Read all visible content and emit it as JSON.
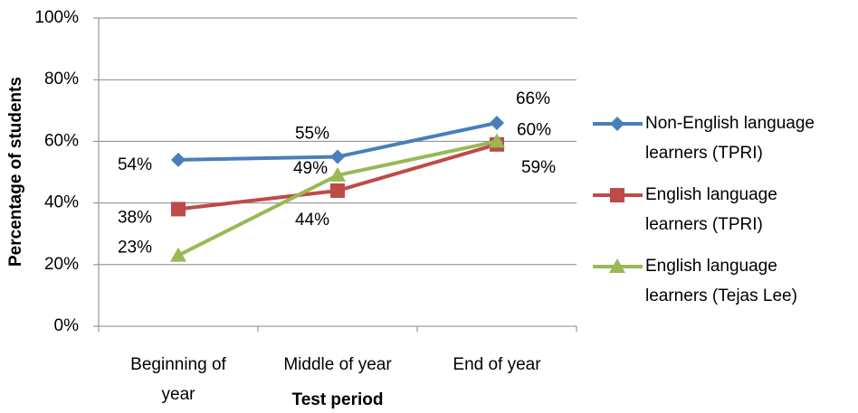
{
  "chart_data": {
    "type": "line",
    "x_label": "Test period",
    "y_label": "Percentage of students",
    "categories": [
      "Beginning of year",
      "Middle of year",
      "End of year"
    ],
    "series": [
      {
        "name": "Non-English language learners (TPRI)",
        "color": "#4a7ebb",
        "marker": "diamond",
        "values": [
          54,
          55,
          66
        ],
        "value_labels": [
          "54%",
          "55%",
          "66%"
        ]
      },
      {
        "name": "English language learners (TPRI)",
        "color": "#be4b48",
        "marker": "square",
        "values": [
          38,
          44,
          59
        ],
        "value_labels": [
          "38%",
          "44%",
          "59%"
        ]
      },
      {
        "name": "English language learners (Tejas Lee)",
        "color": "#98b954",
        "marker": "triangle",
        "values": [
          23,
          49,
          60
        ],
        "value_labels": [
          "23%",
          "49%",
          "60%"
        ]
      }
    ],
    "ylim": [
      0,
      100
    ],
    "yticks": [
      {
        "value": 0,
        "label": "0%"
      },
      {
        "value": 20,
        "label": "20%"
      },
      {
        "value": 40,
        "label": "40%"
      },
      {
        "value": 60,
        "label": "60%"
      },
      {
        "value": 80,
        "label": "80%"
      },
      {
        "value": 100,
        "label": "100%"
      }
    ],
    "grid": true,
    "legend": "right"
  }
}
